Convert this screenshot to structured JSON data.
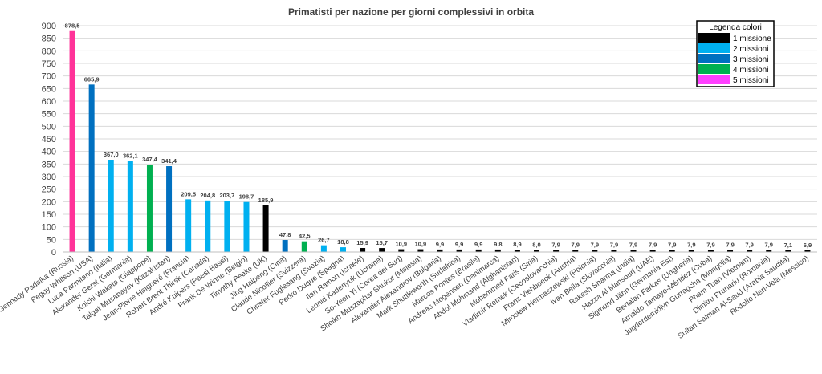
{
  "chart_data": {
    "type": "bar",
    "title": "Primatisti per nazione per giorni complessivi in orbita",
    "xlabel": "",
    "ylabel": "",
    "ylim": [
      0,
      900
    ],
    "yticks": [
      0,
      50,
      100,
      150,
      200,
      250,
      300,
      350,
      400,
      450,
      500,
      550,
      600,
      650,
      700,
      750,
      800,
      850,
      900
    ],
    "grid": true,
    "categories": [
      "Gennady Padalka (Russia)",
      "Peggy Whitson (USA)",
      "Luca Parmitano (Italia)",
      "Alexander Gerst (Germania)",
      "Koichi Wakata (Giappone)",
      "Talgat Musabayev (Kazakistan)",
      "Jean-Pierre Haigneré (Francia)",
      "Robert Brent Thirsk (Canada)",
      "André Kuipers (Paesi Bassi)",
      "Frank De Winne (Belgio)",
      "Timothy Peake (UK)",
      "Jing Haipeng (Cina)",
      "Claude Nicollier (Svizzera)",
      "Christer Fuglesang (Svezia)",
      "Pedro Duque (Spagna)",
      "Ilan Ramon (Israele)",
      "Leonid Kadenyuk (Ucraina)",
      "So-Yeon Yi (Corea del Sud)",
      "Sheikh Muszaphar Shukor (Malesia)",
      "Alexander Alexandrov (Bulgaria)",
      "Mark Shuttleworth (Sudafrica)",
      "Marcos Pontes (Brasile)",
      "Andreas Mogensen (Danimarca)",
      "Abdol Mohmand (Afghanistan)",
      "Mohammed Faris (Siria)",
      "Vladimír Remek (Cecoslovacchia)",
      "Franz Viehboeck (Austria)",
      "Mirosław Hermaszewski (Polonia)",
      "Ivan Bella (Slovacchia)",
      "Rakesh Sharma (India)",
      "Hazza Al Mansouri (UAE)",
      "Sigmund Jähn (Germania Est)",
      "Bertalan Farkas (Ungheria)",
      "Arnaldo Tamayo-Méndez (Cuba)",
      "Jugderdemidiyn Gurragcha (Mongolia)",
      "Pham Tuan (Vietnam)",
      "Dimitru Prunariu (Romania)",
      "Sultan Salman Al-Saud (Arabia Saudita)",
      "Rodolfo Neri-Vela (Messico)"
    ],
    "values": [
      878.5,
      665.9,
      367.0,
      362.1,
      347.4,
      341.4,
      209.5,
      204.8,
      203.7,
      198.7,
      185.9,
      47.8,
      42.5,
      26.7,
      18.8,
      15.9,
      15.7,
      10.9,
      10.9,
      9.9,
      9.9,
      9.9,
      9.8,
      8.9,
      8.0,
      7.9,
      7.9,
      7.9,
      7.9,
      7.9,
      7.9,
      7.9,
      7.9,
      7.9,
      7.9,
      7.9,
      7.9,
      7.1,
      6.9
    ],
    "value_labels": [
      "878,5",
      "665,9",
      "367,0",
      "362,1",
      "347,4",
      "341,4",
      "209,5",
      "204,8",
      "203,7",
      "198,7",
      "185,9",
      "47,8",
      "42,5",
      "26,7",
      "18,8",
      "15,9",
      "15,7",
      "10,9",
      "10,9",
      "9,9",
      "9,9",
      "9,9",
      "9,8",
      "8,9",
      "8,0",
      "7,9",
      "7,9",
      "7,9",
      "7,9",
      "7,9",
      "7,9",
      "7,9",
      "7,9",
      "7,9",
      "7,9",
      "7,9",
      "7,9",
      "7,1",
      "6,9"
    ],
    "missions": [
      5,
      3,
      2,
      2,
      4,
      3,
      2,
      2,
      2,
      2,
      1,
      3,
      4,
      2,
      2,
      1,
      1,
      1,
      1,
      1,
      1,
      1,
      1,
      1,
      1,
      1,
      1,
      1,
      1,
      1,
      1,
      1,
      1,
      1,
      1,
      1,
      1,
      1,
      1
    ],
    "legend": {
      "title": "Legenda colori",
      "placement": "top-right",
      "items": [
        {
          "missions": 1,
          "label": "1 missione",
          "color": "#000000"
        },
        {
          "missions": 2,
          "label": "2 missioni",
          "color": "#00b0f0"
        },
        {
          "missions": 3,
          "label": "3 missioni",
          "color": "#0070c0"
        },
        {
          "missions": 4,
          "label": "4 missioni",
          "color": "#00b050"
        },
        {
          "missions": 5,
          "label": "5 missioni",
          "color": "#ff40ff"
        }
      ]
    },
    "colors": {
      "gennady_bar": "#ff3399",
      "grid": "#d9d9d9",
      "axis": "#bfbfbf"
    }
  }
}
